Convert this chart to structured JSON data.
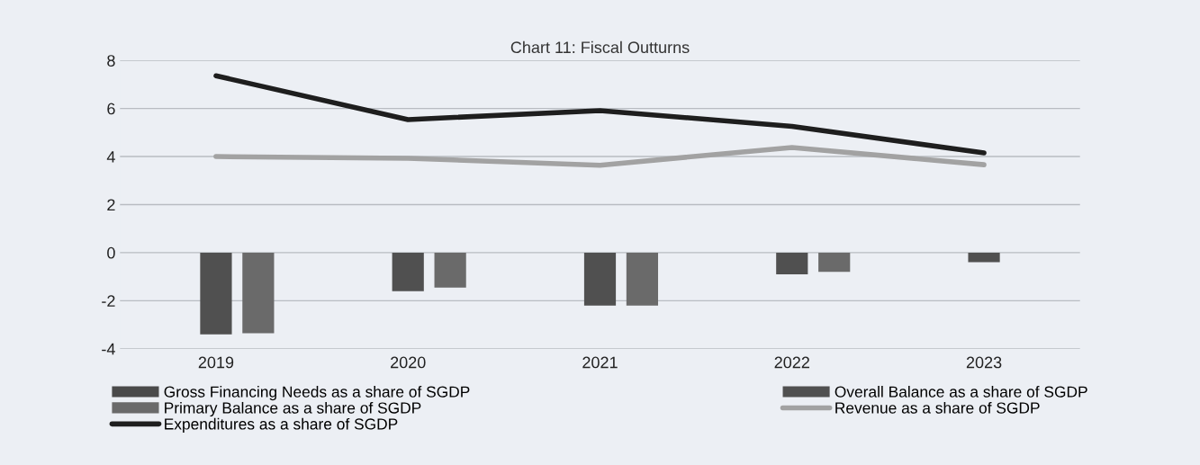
{
  "chart_data": {
    "type": "bar",
    "title": "Chart 11: Fiscal Outturns",
    "categories": [
      "2019",
      "2020",
      "2021",
      "2022",
      "2023"
    ],
    "series": [
      {
        "name": "Gross Financing Needs as a share of SGDP",
        "color": "#4a4a4a",
        "values": [
          null,
          null,
          null,
          null,
          null
        ]
      },
      {
        "name": "Overall Balance as a share of SGDP",
        "color": "#505050",
        "values": [
          -3.4,
          -1.6,
          -2.2,
          -0.9,
          -0.4
        ]
      },
      {
        "name": "Primary Balance as a share of SGDP",
        "color": "#6a6a6a",
        "values": [
          -3.35,
          -1.45,
          -2.2,
          -0.8,
          null
        ]
      },
      {
        "name": "Revenue as a share of SGDP",
        "type": "line",
        "color": "#a2a2a2",
        "values": [
          4.0,
          3.93,
          3.64,
          4.38,
          3.66
        ]
      },
      {
        "name": "Expenditures as a share of SGDP",
        "type": "line",
        "color": "#1e1e1e",
        "values": [
          7.36,
          5.54,
          5.91,
          5.26,
          4.15
        ]
      }
    ],
    "ylim": [
      -4,
      8
    ],
    "yticks": [
      -4,
      -2,
      0,
      2,
      4,
      6,
      8
    ],
    "grid": "y",
    "legend": "bottom"
  }
}
